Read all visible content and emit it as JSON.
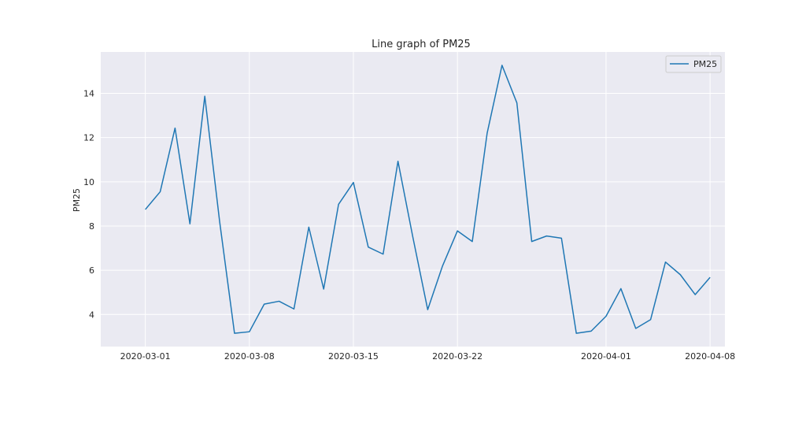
{
  "chart_data": {
    "type": "line",
    "title": "Line graph of PM25",
    "xlabel": "",
    "ylabel": "PM25",
    "x": [
      "2020-03-01",
      "2020-03-02",
      "2020-03-03",
      "2020-03-04",
      "2020-03-05",
      "2020-03-06",
      "2020-03-07",
      "2020-03-08",
      "2020-03-09",
      "2020-03-10",
      "2020-03-11",
      "2020-03-12",
      "2020-03-13",
      "2020-03-14",
      "2020-03-15",
      "2020-03-16",
      "2020-03-17",
      "2020-03-18",
      "2020-03-19",
      "2020-03-20",
      "2020-03-21",
      "2020-03-22",
      "2020-03-23",
      "2020-03-24",
      "2020-03-25",
      "2020-03-26",
      "2020-03-27",
      "2020-03-28",
      "2020-03-29",
      "2020-03-30",
      "2020-03-31",
      "2020-04-01",
      "2020-04-02",
      "2020-04-03",
      "2020-04-04",
      "2020-04-05",
      "2020-04-06",
      "2020-04-07",
      "2020-04-08"
    ],
    "series": [
      {
        "name": "PM25",
        "color": "#1f77b4",
        "values": [
          8.75,
          9.55,
          12.43,
          8.1,
          13.87,
          8.2,
          3.15,
          3.22,
          4.47,
          4.6,
          4.25,
          7.95,
          5.15,
          8.98,
          9.97,
          7.05,
          6.73,
          10.93,
          7.5,
          4.22,
          6.2,
          7.78,
          7.3,
          12.2,
          15.27,
          13.57,
          7.3,
          7.55,
          7.45,
          3.15,
          3.25,
          3.92,
          5.17,
          3.37,
          3.77,
          6.37,
          5.8,
          4.9,
          5.68
        ]
      }
    ],
    "x_tick_labels": [
      "2020-03-01",
      "2020-03-08",
      "2020-03-15",
      "2020-03-22",
      "2020-04-01",
      "2020-04-08"
    ],
    "y_ticks": [
      4,
      6,
      8,
      10,
      12,
      14
    ],
    "xlim": [
      "2020-02-27",
      "2020-04-09"
    ],
    "ylim": [
      2.55,
      15.87
    ],
    "grid": true,
    "legend": "upper right",
    "colors": {
      "plot_background": "#eaeaf2",
      "grid": "#ffffff",
      "line": "#1f77b4",
      "text": "#262626"
    }
  }
}
